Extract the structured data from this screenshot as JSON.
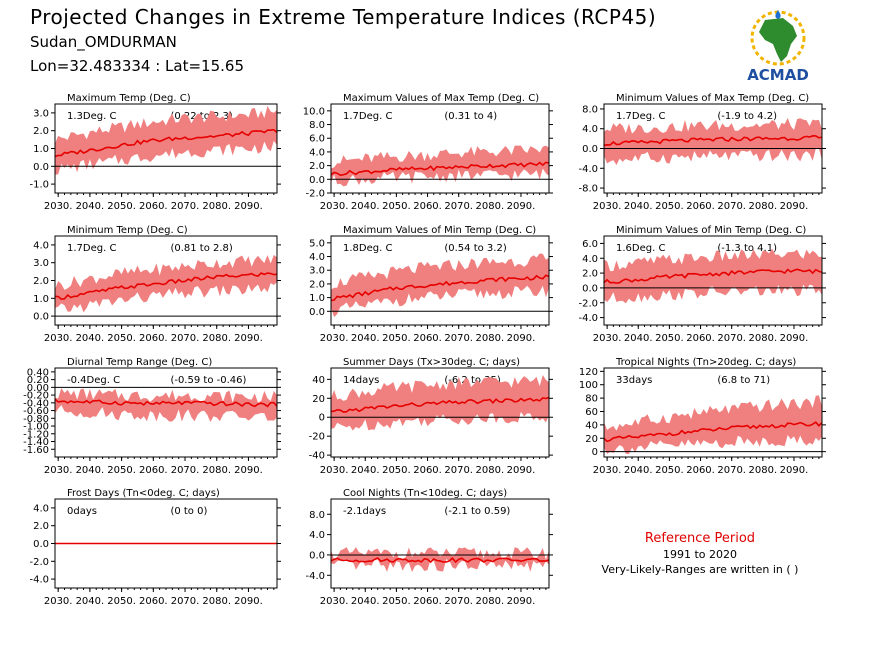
{
  "header": {
    "title": "Projected Changes in Extreme Temperature Indices (RCP45)",
    "station": "Sudan_OMDURMAN",
    "coords": "Lon=32.483334 : Lat=15.65"
  },
  "logo": {
    "text": "ACMAD",
    "icon": "africa-map-icon"
  },
  "reference": {
    "title": "Reference Period",
    "years": "1991 to 2020",
    "note": "Very-Likely-Ranges are written in ( )"
  },
  "colors": {
    "band": "#f08080",
    "line": "#e60000",
    "ref_title": "#e00000"
  },
  "chart_data": [
    {
      "id": "maximum-temp",
      "type": "line",
      "title": "Maximum Temp (Deg. C)",
      "stat": "1.3Deg. C",
      "range": "(0.22 to 2.3)",
      "x_ticks": [
        "2030.",
        "2040.",
        "2050.",
        "2060.",
        "2070.",
        "2080.",
        "2090."
      ],
      "y_ticks": [
        "3.0",
        "2.0",
        "1.0",
        "0.0",
        "-1.0"
      ],
      "y_tick_values": [
        3,
        2,
        1,
        0,
        -1
      ],
      "ylim": [
        -1.5,
        3.5
      ],
      "series": [
        {
          "name": "",
          "x": [
            2029,
            2040,
            2050,
            2060,
            2070,
            2080,
            2090,
            2099
          ],
          "values": [
            0.6,
            0.9,
            1.2,
            1.45,
            1.6,
            1.7,
            1.85,
            2.0
          ]
        },
        {
          "name": "",
          "x": [
            2029,
            2040,
            2050,
            2060,
            2070,
            2080,
            2090,
            2099
          ],
          "values": [
            -0.2,
            0.1,
            0.35,
            0.6,
            0.8,
            0.9,
            1.0,
            1.1
          ]
        },
        {
          "name": "",
          "x": [
            2029,
            2040,
            2050,
            2060,
            2070,
            2080,
            2090,
            2099
          ],
          "values": [
            1.5,
            1.9,
            2.2,
            2.5,
            2.7,
            2.8,
            2.9,
            3.1
          ]
        }
      ]
    },
    {
      "id": "max-of-max-temp",
      "type": "line",
      "title": "Maximum Values of Max Temp (Deg. C)",
      "stat": "1.7Deg. C",
      "range": "(0.31 to 4)",
      "x_ticks": [
        "2030.",
        "2040.",
        "2050.",
        "2060.",
        "2070.",
        "2080.",
        "2090."
      ],
      "y_ticks": [
        "10.0",
        "8.0",
        "6.0",
        "4.0",
        "2.0",
        "0.0",
        "-2.0"
      ],
      "y_tick_values": [
        10,
        8,
        6,
        4,
        2,
        0,
        -2
      ],
      "ylim": [
        -2,
        11
      ],
      "series": [
        {
          "name": "",
          "x": [
            2029,
            2040,
            2050,
            2060,
            2070,
            2080,
            2090,
            2099
          ],
          "values": [
            0.8,
            1.1,
            1.4,
            1.6,
            1.8,
            2.0,
            2.1,
            2.3
          ]
        },
        {
          "name": "",
          "x": [
            2029,
            2040,
            2050,
            2060,
            2070,
            2080,
            2090,
            2099
          ],
          "values": [
            -0.2,
            0,
            0.2,
            0.4,
            0.5,
            0.6,
            0.7,
            0.8
          ]
        },
        {
          "name": "",
          "x": [
            2029,
            2040,
            2050,
            2060,
            2070,
            2080,
            2090,
            2099
          ],
          "values": [
            2.5,
            3.0,
            3.3,
            3.6,
            3.9,
            4.0,
            4.2,
            4.4
          ]
        }
      ]
    },
    {
      "id": "min-of-max-temp",
      "type": "line",
      "title": "Minimum Values of Max Temp (Deg. C)",
      "stat": "1.7Deg. C",
      "range": "(-1.9 to 4.2)",
      "x_ticks": [
        "2030.",
        "2040.",
        "2050.",
        "2060.",
        "2070.",
        "2080.",
        "2090."
      ],
      "y_ticks": [
        "8.0",
        "4.0",
        "0.0",
        "-4.0",
        "-8.0"
      ],
      "y_tick_values": [
        8,
        4,
        0,
        -4,
        -8
      ],
      "ylim": [
        -9,
        9
      ],
      "series": [
        {
          "name": "",
          "x": [
            2029,
            2040,
            2050,
            2060,
            2070,
            2080,
            2090,
            2099
          ],
          "values": [
            1.0,
            1.2,
            1.5,
            1.7,
            1.9,
            2.0,
            2.1,
            2.2
          ]
        },
        {
          "name": "",
          "x": [
            2029,
            2040,
            2050,
            2060,
            2070,
            2080,
            2090,
            2099
          ],
          "values": [
            -2.5,
            -2.0,
            -1.8,
            -1.6,
            -1.5,
            -1.5,
            -1.4,
            -1.3
          ]
        },
        {
          "name": "",
          "x": [
            2029,
            2040,
            2050,
            2060,
            2070,
            2080,
            2090,
            2099
          ],
          "values": [
            4.0,
            4.2,
            4.4,
            4.6,
            4.7,
            4.8,
            4.9,
            5.0
          ]
        }
      ]
    },
    {
      "id": "minimum-temp",
      "type": "line",
      "title": "Minimum Temp (Deg. C)",
      "stat": "1.7Deg. C",
      "range": "(0.81 to 2.8)",
      "x_ticks": [
        "2030.",
        "2040.",
        "2050.",
        "2060.",
        "2070.",
        "2080.",
        "2090."
      ],
      "y_ticks": [
        "4.0",
        "3.0",
        "2.0",
        "1.0",
        "0.0"
      ],
      "y_tick_values": [
        4,
        3,
        2,
        1,
        0
      ],
      "ylim": [
        -0.5,
        4.5
      ],
      "series": [
        {
          "name": "",
          "x": [
            2029,
            2040,
            2050,
            2060,
            2070,
            2080,
            2090,
            2099
          ],
          "values": [
            1.0,
            1.3,
            1.6,
            1.8,
            2.0,
            2.2,
            2.3,
            2.4
          ]
        },
        {
          "name": "",
          "x": [
            2029,
            2040,
            2050,
            2060,
            2070,
            2080,
            2090,
            2099
          ],
          "values": [
            0.3,
            0.6,
            0.9,
            1.1,
            1.3,
            1.4,
            1.5,
            1.6
          ]
        },
        {
          "name": "",
          "x": [
            2029,
            2040,
            2050,
            2060,
            2070,
            2080,
            2090,
            2099
          ],
          "values": [
            1.7,
            2.1,
            2.4,
            2.6,
            2.8,
            3.0,
            3.1,
            3.2
          ]
        }
      ]
    },
    {
      "id": "max-of-min-temp",
      "type": "line",
      "title": "Maximum Values of Min Temp (Deg. C)",
      "stat": "1.8Deg. C",
      "range": "(0.54 to 3.2)",
      "x_ticks": [
        "2030.",
        "2040.",
        "2050.",
        "2060.",
        "2070.",
        "2080.",
        "2090."
      ],
      "y_ticks": [
        "5.0",
        "4.0",
        "3.0",
        "2.0",
        "1.0",
        "0.0"
      ],
      "y_tick_values": [
        5,
        4,
        3,
        2,
        1,
        0
      ],
      "ylim": [
        -1,
        5.5
      ],
      "series": [
        {
          "name": "",
          "x": [
            2029,
            2040,
            2050,
            2060,
            2070,
            2080,
            2090,
            2099
          ],
          "values": [
            0.9,
            1.3,
            1.7,
            1.9,
            2.1,
            2.3,
            2.4,
            2.5
          ]
        },
        {
          "name": "",
          "x": [
            2029,
            2040,
            2050,
            2060,
            2070,
            2080,
            2090,
            2099
          ],
          "values": [
            0,
            0.4,
            0.8,
            1.0,
            1.2,
            1.3,
            1.4,
            1.5
          ]
        },
        {
          "name": "",
          "x": [
            2029,
            2040,
            2050,
            2060,
            2070,
            2080,
            2090,
            2099
          ],
          "values": [
            2.0,
            2.5,
            2.9,
            3.2,
            3.4,
            3.6,
            3.7,
            3.8
          ]
        }
      ]
    },
    {
      "id": "min-of-min-temp",
      "type": "line",
      "title": "Minimum Values of Min Temp (Deg. C)",
      "stat": "1.6Deg. C",
      "range": "(-1.3 to 4.1)",
      "x_ticks": [
        "2030.",
        "2040.",
        "2050.",
        "2060.",
        "2070.",
        "2080.",
        "2090."
      ],
      "y_ticks": [
        "6.0",
        "4.0",
        "2.0",
        "0.0",
        "-2.0",
        "-4.0"
      ],
      "y_tick_values": [
        6,
        4,
        2,
        0,
        -2,
        -4
      ],
      "ylim": [
        -5,
        7
      ],
      "series": [
        {
          "name": "",
          "x": [
            2029,
            2040,
            2050,
            2060,
            2070,
            2080,
            2090,
            2099
          ],
          "values": [
            0.8,
            1.1,
            1.5,
            1.8,
            2.0,
            2.2,
            2.3,
            2.2
          ]
        },
        {
          "name": "",
          "x": [
            2029,
            2040,
            2050,
            2060,
            2070,
            2080,
            2090,
            2099
          ],
          "values": [
            -1.5,
            -1.2,
            -0.9,
            -0.7,
            -0.5,
            -0.4,
            -0.4,
            -0.4
          ]
        },
        {
          "name": "",
          "x": [
            2029,
            2040,
            2050,
            2060,
            2070,
            2080,
            2090,
            2099
          ],
          "values": [
            3.0,
            3.4,
            3.8,
            4.1,
            4.3,
            4.5,
            4.6,
            4.6
          ]
        }
      ]
    },
    {
      "id": "diurnal-temp-range",
      "type": "line",
      "title": "Diurnal Temp Range (Deg. C)",
      "stat": "-0.4Deg. C",
      "range": "(-0.59 to -0.46)",
      "x_ticks": [
        "2030.",
        "2040.",
        "2050.",
        "2060.",
        "2070.",
        "2080.",
        "2090."
      ],
      "y_ticks": [
        "0.40",
        "0.20",
        "0.00",
        "-0.20",
        "-0.40",
        "-0.60",
        "-0.80",
        "-1.00",
        "-1.20",
        "-1.40",
        "-1.60"
      ],
      "y_tick_values": [
        0.4,
        0.2,
        0,
        -0.2,
        -0.4,
        -0.6,
        -0.8,
        -1.0,
        -1.2,
        -1.4,
        -1.6
      ],
      "ylim": [
        -1.8,
        0.5
      ],
      "series": [
        {
          "name": "",
          "x": [
            2029,
            2040,
            2050,
            2060,
            2070,
            2080,
            2090,
            2099
          ],
          "values": [
            -0.35,
            -0.38,
            -0.4,
            -0.42,
            -0.4,
            -0.42,
            -0.44,
            -0.45
          ]
        },
        {
          "name": "",
          "x": [
            2029,
            2040,
            2050,
            2060,
            2070,
            2080,
            2090,
            2099
          ],
          "values": [
            -0.6,
            -0.65,
            -0.7,
            -0.72,
            -0.72,
            -0.74,
            -0.76,
            -0.78
          ]
        },
        {
          "name": "",
          "x": [
            2029,
            2040,
            2050,
            2060,
            2070,
            2080,
            2090,
            2099
          ],
          "values": [
            -0.15,
            -0.18,
            -0.2,
            -0.22,
            -0.2,
            -0.22,
            -0.24,
            -0.25
          ]
        }
      ]
    },
    {
      "id": "summer-days",
      "type": "line",
      "title": "Summer Days (Tx>30deg. C; days)",
      "stat": "14days",
      "range": "(-6.2 to 35)",
      "x_ticks": [
        "2030.",
        "2040.",
        "2050.",
        "2060.",
        "2070.",
        "2080.",
        "2090."
      ],
      "y_ticks": [
        "40",
        "20",
        "0",
        "-20",
        "-40"
      ],
      "y_tick_values": [
        40,
        20,
        0,
        -20,
        -40
      ],
      "ylim": [
        -42,
        52
      ],
      "series": [
        {
          "name": "",
          "x": [
            2029,
            2040,
            2050,
            2060,
            2070,
            2080,
            2090,
            2099
          ],
          "values": [
            5,
            9,
            12,
            14,
            16,
            17,
            18,
            19
          ]
        },
        {
          "name": "",
          "x": [
            2029,
            2040,
            2050,
            2060,
            2070,
            2080,
            2090,
            2099
          ],
          "values": [
            -12,
            -8,
            -5,
            -3,
            -2,
            -1,
            0,
            0
          ]
        },
        {
          "name": "",
          "x": [
            2029,
            2040,
            2050,
            2060,
            2070,
            2080,
            2090,
            2099
          ],
          "values": [
            22,
            27,
            31,
            34,
            36,
            37,
            38,
            39
          ]
        }
      ]
    },
    {
      "id": "tropical-nights",
      "type": "line",
      "title": "Tropical Nights (Tn>20deg. C; days)",
      "stat": "33days",
      "range": "(6.8 to 71)",
      "x_ticks": [
        "2030.",
        "2040.",
        "2050.",
        "2060.",
        "2070.",
        "2080.",
        "2090."
      ],
      "y_ticks": [
        "120",
        "100",
        "80",
        "60",
        "40",
        "20",
        "0"
      ],
      "y_tick_values": [
        120,
        100,
        80,
        60,
        40,
        20,
        0
      ],
      "ylim": [
        -8,
        125
      ],
      "series": [
        {
          "name": "",
          "x": [
            2029,
            2040,
            2050,
            2060,
            2070,
            2080,
            2090,
            2099
          ],
          "values": [
            18,
            22,
            27,
            31,
            35,
            38,
            40,
            42
          ]
        },
        {
          "name": "",
          "x": [
            2029,
            2040,
            2050,
            2060,
            2070,
            2080,
            2090,
            2099
          ],
          "values": [
            4,
            6,
            9,
            12,
            14,
            16,
            17,
            18
          ]
        },
        {
          "name": "",
          "x": [
            2029,
            2040,
            2050,
            2060,
            2070,
            2080,
            2090,
            2099
          ],
          "values": [
            36,
            44,
            52,
            58,
            64,
            68,
            72,
            75
          ]
        }
      ]
    },
    {
      "id": "frost-days",
      "type": "line",
      "title": "Frost Days (Tn<0deg. C; days)",
      "stat": "0days",
      "range": "(0 to 0)",
      "x_ticks": [
        "2030.",
        "2040.",
        "2050.",
        "2060.",
        "2070.",
        "2080.",
        "2090."
      ],
      "y_ticks": [
        "4.0",
        "2.0",
        "0.0",
        "-2.0",
        "-4.0"
      ],
      "y_tick_values": [
        4,
        2,
        0,
        -2,
        -4
      ],
      "ylim": [
        -5,
        5
      ],
      "series": [
        {
          "name": "",
          "x": [
            2029,
            2099
          ],
          "values": [
            0,
            0
          ]
        },
        {
          "name": "",
          "x": [
            2029,
            2099
          ],
          "values": [
            0,
            0
          ]
        },
        {
          "name": "",
          "x": [
            2029,
            2099
          ],
          "values": [
            0,
            0
          ]
        }
      ]
    },
    {
      "id": "cool-nights",
      "type": "line",
      "title": "Cool Nights (Tn<10deg. C; days)",
      "stat": "-2.1days",
      "range": "(-2.1 to 0.59)",
      "x_ticks": [
        "2030.",
        "2040.",
        "2050.",
        "2060.",
        "2070.",
        "2080.",
        "2090."
      ],
      "y_ticks": [
        "8.0",
        "4.0",
        "0.0",
        "-4.0"
      ],
      "y_tick_values": [
        8,
        4,
        0,
        -4
      ],
      "ylim": [
        -6.5,
        11
      ],
      "series": [
        {
          "name": "",
          "x": [
            2029,
            2099
          ],
          "values": [
            -1.0,
            -1.0
          ]
        },
        {
          "name": "",
          "x": [
            2029,
            2099
          ],
          "values": [
            -2.1,
            -2.1
          ]
        },
        {
          "name": "",
          "x": [
            2029,
            2099
          ],
          "values": [
            0.3,
            0.3
          ]
        }
      ]
    }
  ]
}
